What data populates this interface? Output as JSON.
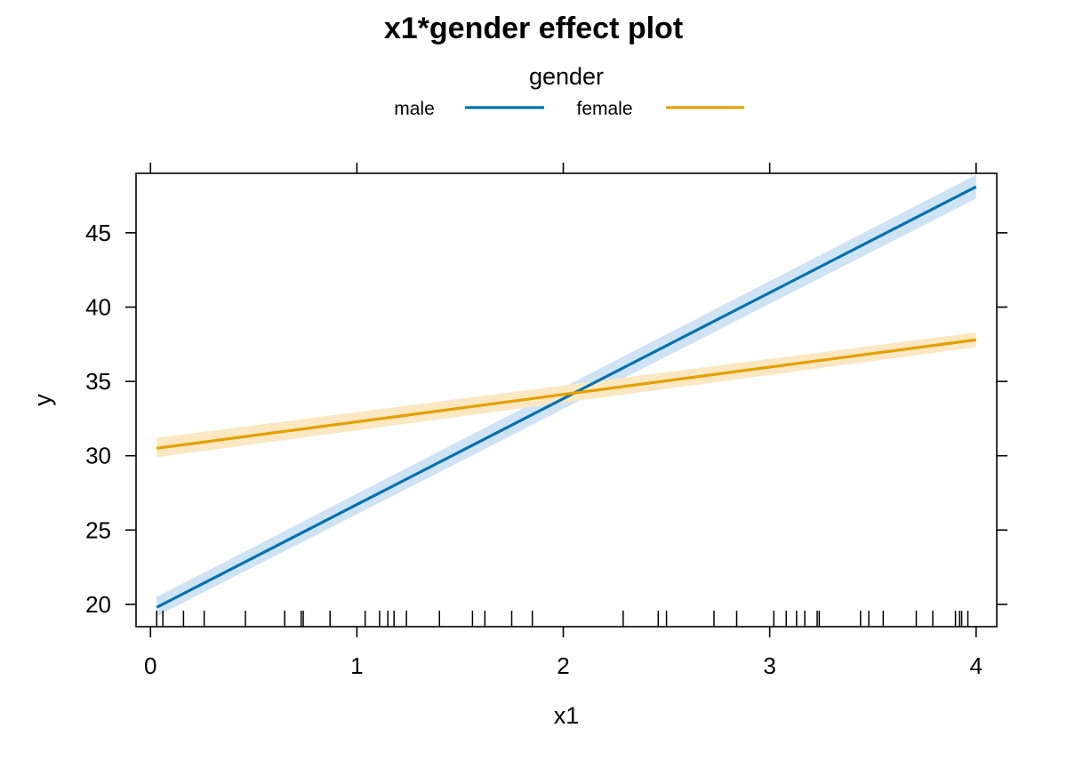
{
  "chart_data": {
    "type": "line",
    "title": "x1*gender effect plot",
    "xlabel": "x1",
    "ylabel": "y",
    "xlim": [
      -0.07,
      4.1
    ],
    "ylim": [
      18.5,
      49.0
    ],
    "xticks": [
      0,
      1,
      2,
      3,
      4
    ],
    "yticks": [
      20,
      25,
      30,
      35,
      40,
      45
    ],
    "grid": false,
    "legend": {
      "title": "gender",
      "position": "top-center"
    },
    "series": [
      {
        "name": "male",
        "color": "#0072B2",
        "band_color": "#cfe3f5",
        "x": [
          0.03,
          4.0
        ],
        "y": [
          19.8,
          48.1
        ],
        "lower": [
          19.2,
          47.3
        ],
        "upper": [
          20.5,
          48.9
        ]
      },
      {
        "name": "female",
        "color": "#E69F00",
        "band_color": "#fbe8c2",
        "x": [
          0.03,
          4.0
        ],
        "y": [
          30.5,
          37.8
        ],
        "lower": [
          29.9,
          37.3
        ],
        "upper": [
          31.2,
          38.3
        ]
      }
    ],
    "rug_x": [
      0.03,
      0.06,
      0.16,
      0.26,
      0.46,
      0.65,
      0.73,
      0.74,
      0.87,
      1.04,
      1.11,
      1.15,
      1.18,
      1.24,
      1.4,
      1.56,
      1.62,
      1.75,
      1.85,
      2.29,
      2.46,
      2.5,
      2.73,
      2.84,
      3.02,
      3.08,
      3.13,
      3.17,
      3.23,
      3.24,
      3.44,
      3.48,
      3.55,
      3.71,
      3.79,
      3.9,
      3.92,
      3.93,
      3.96
    ]
  }
}
